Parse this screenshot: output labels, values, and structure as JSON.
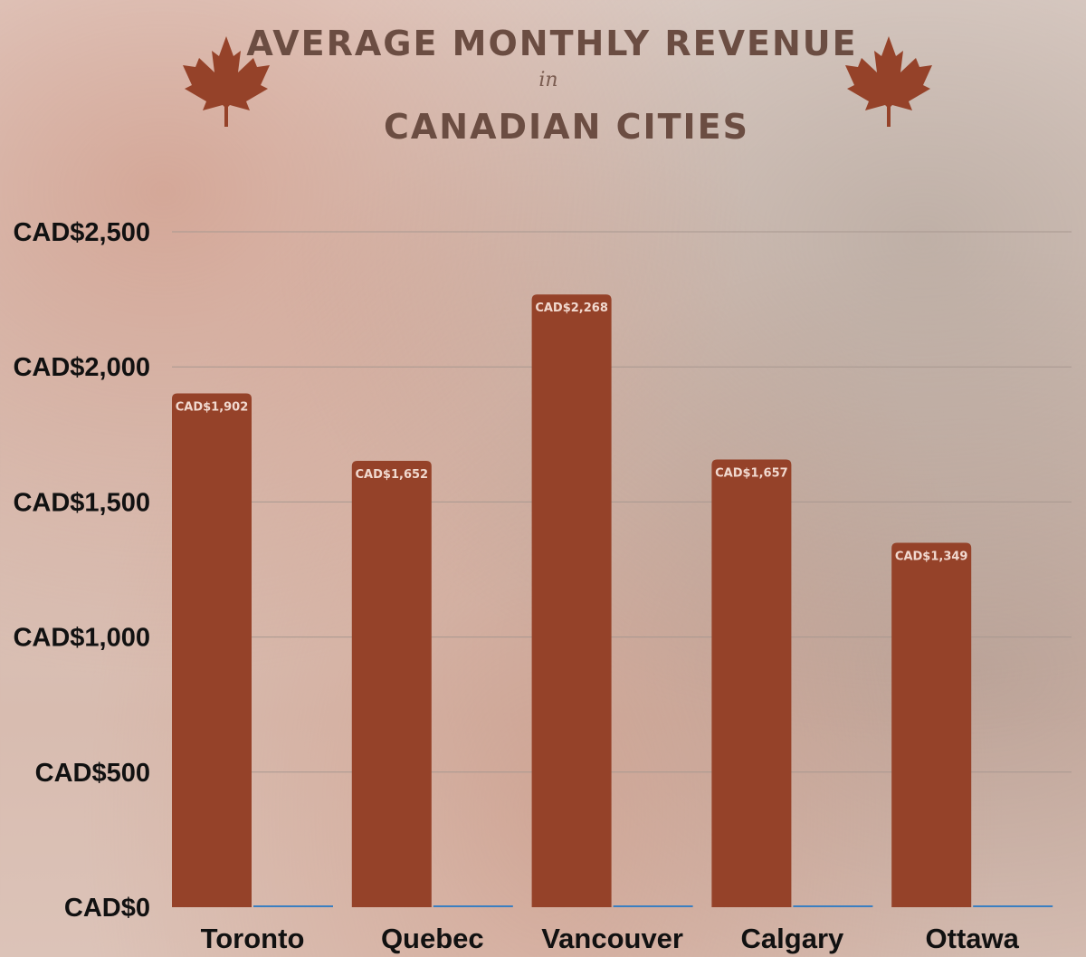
{
  "header": {
    "title_line1": "AVERAGE MONTHLY REVENUE",
    "title_connector": "in",
    "title_line2": "CANADIAN CITIES"
  },
  "icons": {
    "left": "maple-leaf-icon",
    "right": "maple-leaf-icon"
  },
  "colors": {
    "bar": "#954229",
    "secondary_bar": "#3a7fc1",
    "title": "#6b4d42",
    "grid": "#a89890"
  },
  "chart_data": {
    "type": "bar",
    "categories": [
      "Toronto",
      "Quebec",
      "Vancouver",
      "Calgary",
      "Ottawa"
    ],
    "series": [
      {
        "values": [
          1902,
          1652,
          2268,
          1657,
          1349
        ],
        "labels": [
          "CAD$1,902",
          "CAD$1,652",
          "CAD$2,268",
          "CAD$1,657",
          "CAD$1,349"
        ]
      },
      {
        "values": [
          0,
          0,
          0,
          0,
          0
        ]
      }
    ],
    "ylim": [
      0,
      2500
    ],
    "yticks": [
      0,
      500,
      1000,
      1500,
      2000,
      2500
    ],
    "ytick_labels": [
      "CAD$0",
      "CAD$500",
      "CAD$1,000",
      "CAD$1,500",
      "CAD$2,000",
      "CAD$2,500"
    ],
    "title": "AVERAGE MONTHLY REVENUE in CANADIAN CITIES",
    "xlabel": "",
    "ylabel": "",
    "grid": true,
    "legend": "none"
  }
}
